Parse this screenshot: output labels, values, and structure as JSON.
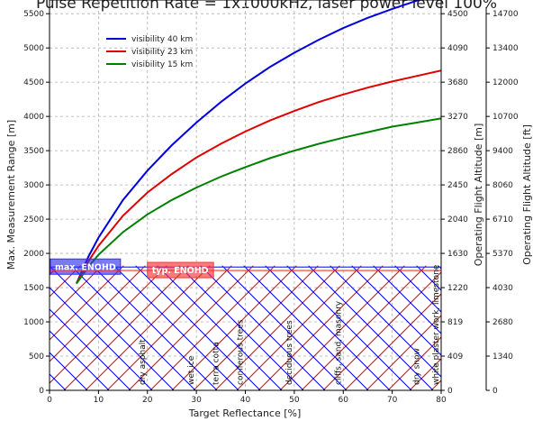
{
  "chart_data": {
    "type": "line",
    "title": "Pulse Repetition Rate = 1x1000kHz, laser power level 100%",
    "xlabel": "Target Reflectance [%]",
    "ylabel": "Max. Measurement Range [m]",
    "y2label": "Operating Flight Altitude [m]",
    "y3label": "Operating Flight Altitude [ft]",
    "xlim": [
      0,
      80
    ],
    "ylim": [
      0,
      5700
    ],
    "grid": true,
    "legend_position": "upper-left",
    "x_ticks": [
      "0",
      "10",
      "20",
      "30",
      "40",
      "50",
      "60",
      "70",
      "80"
    ],
    "y_ticks": [
      "0",
      "500",
      "1000",
      "1500",
      "2000",
      "2500",
      "3000",
      "3500",
      "4000",
      "4500",
      "5000",
      "5500"
    ],
    "y2_ticks": [
      "0",
      "409",
      "819",
      "1220",
      "1630",
      "2040",
      "2450",
      "2860",
      "3270",
      "3680",
      "4090",
      "4500"
    ],
    "y3_ticks": [
      "0",
      "1340",
      "2680",
      "4030",
      "5370",
      "6710",
      "8060",
      "9400",
      "10700",
      "12000",
      "13400",
      "14700"
    ],
    "series": [
      {
        "name": "visibility 40 km",
        "color": "#0000dd",
        "x": [
          5.5,
          8,
          10,
          15,
          20,
          25,
          30,
          35,
          40,
          45,
          50,
          55,
          60,
          65,
          70,
          75,
          80
        ],
        "y": [
          1560,
          1960,
          2230,
          2780,
          3210,
          3580,
          3910,
          4210,
          4480,
          4720,
          4930,
          5120,
          5290,
          5440,
          5570,
          5690,
          5800
        ]
      },
      {
        "name": "visibility 23 km",
        "color": "#e00000",
        "x": [
          5.5,
          8,
          10,
          15,
          20,
          25,
          30,
          35,
          40,
          45,
          50,
          55,
          60,
          65,
          70,
          75,
          80
        ],
        "y": [
          1560,
          1890,
          2110,
          2550,
          2890,
          3160,
          3400,
          3600,
          3780,
          3940,
          4080,
          4210,
          4320,
          4420,
          4510,
          4590,
          4670
        ]
      },
      {
        "name": "visibility 15 km",
        "color": "#008000",
        "x": [
          5.5,
          8,
          10,
          15,
          20,
          25,
          30,
          35,
          40,
          45,
          50,
          55,
          60,
          65,
          70,
          75,
          80
        ],
        "y": [
          1560,
          1810,
          1980,
          2310,
          2570,
          2780,
          2960,
          3120,
          3260,
          3390,
          3500,
          3600,
          3690,
          3770,
          3850,
          3910,
          3970
        ]
      }
    ],
    "enohd_boxes": [
      {
        "label": "max. ENOHD",
        "value": 1800,
        "color": "#3333ee"
      },
      {
        "label": "typ. ENOHD",
        "value": 1750,
        "color": "#ff3333"
      }
    ],
    "hatch_region": {
      "y_top": 1820,
      "x_max": 80
    },
    "surface_labels": [
      {
        "text": "dry asphalt",
        "x": 20
      },
      {
        "text": "wet ice",
        "x": 30
      },
      {
        "text": "terra cotta",
        "x": 35
      },
      {
        "text": "coniferous trees",
        "x": 40
      },
      {
        "text": "deciduous trees",
        "x": 50
      },
      {
        "text": "cliffs, sand, masonry",
        "x": 60
      },
      {
        "text": "dry snow",
        "x": 76
      },
      {
        "text": "white plaster work, limestone",
        "x": 80
      }
    ]
  }
}
